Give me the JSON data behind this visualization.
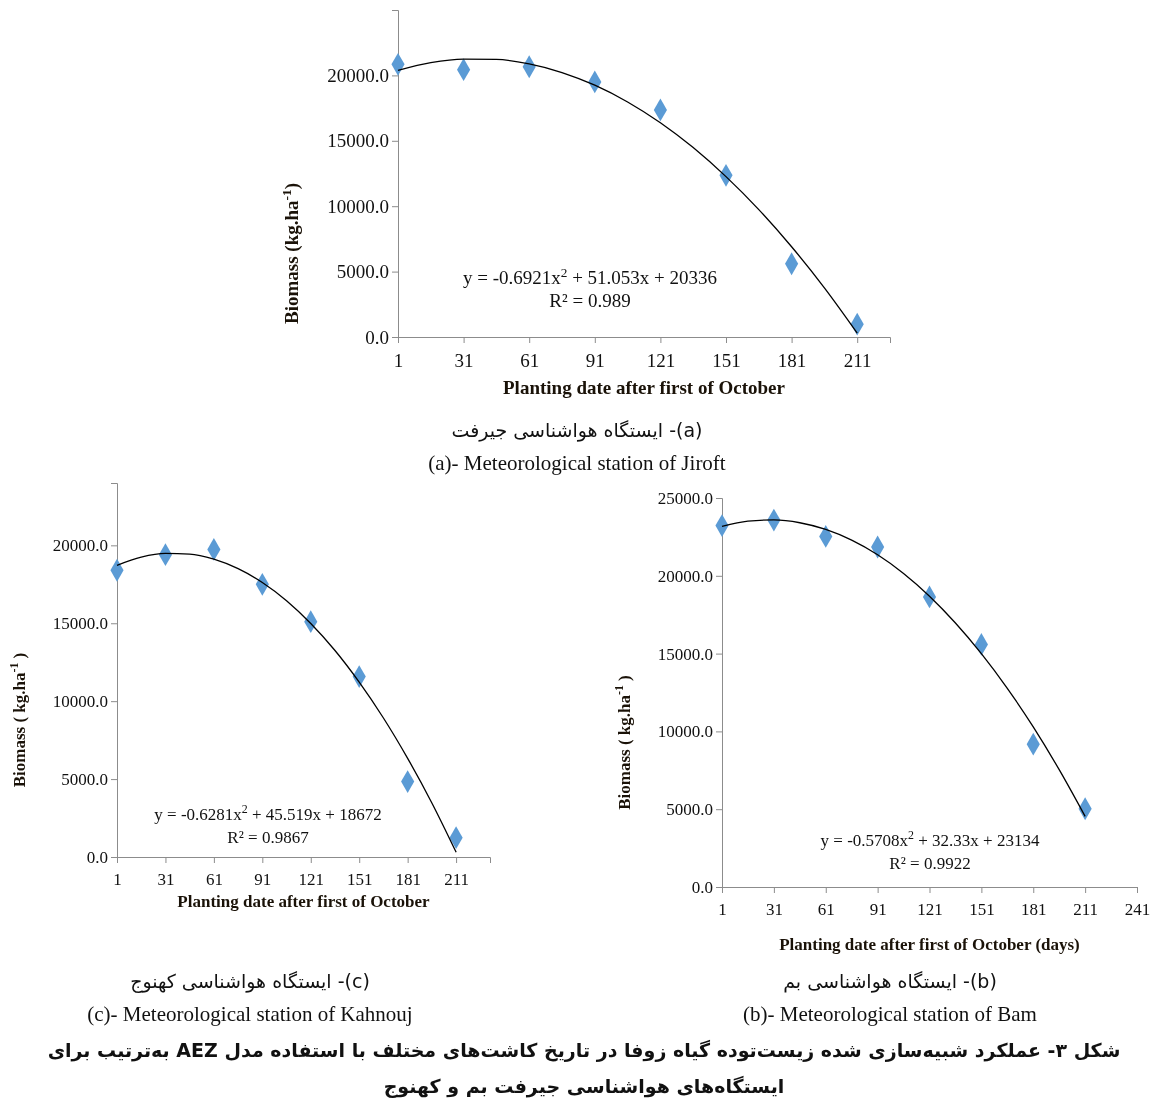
{
  "chart_data": [
    {
      "type": "scatter",
      "title": "(a)- ایستگاه هواشناسی جیرفت",
      "subtitle": "(a)- Meteorological station of Jiroft",
      "xlabel": "Planting date after first of October",
      "ylabel": "Biomass (kg.ha$^{-1}$)",
      "xlim": [
        1,
        226
      ],
      "xticks": [
        1,
        31,
        61,
        91,
        121,
        151,
        181,
        211
      ],
      "ylim": [
        0,
        25000
      ],
      "yticks": [
        {
          "value": 0,
          "label": "0.0"
        },
        {
          "value": 5000,
          "label": "5000.0"
        },
        {
          "value": 10000,
          "label": "10000.0"
        },
        {
          "value": 15000,
          "label": "15000.0"
        },
        {
          "value": 20000,
          "label": "20000.0"
        }
      ],
      "grid": false,
      "marker": "diamond",
      "annotations": [
        "y = -0.6921x$^{2}$ + 51.053x + 20336",
        "R² = 0.989"
      ],
      "series": [
        {
          "type": "scatter",
          "color": "#5b9bd5",
          "x": [
            1,
            31,
            61,
            91,
            121,
            151,
            181,
            211
          ],
          "values": [
            20850,
            20440,
            20660,
            19500,
            17360,
            12360,
            5600,
            980
          ]
        },
        {
          "type": "line",
          "color": "#000000",
          "marker": "none",
          "line_style": "solid",
          "x": [
            1,
            16,
            31,
            46,
            61,
            76,
            91,
            106,
            121,
            136,
            151,
            166,
            181,
            196,
            211
          ],
          "values": [
            20390,
            20980,
            21250,
            21220,
            20880,
            20220,
            19250,
            17970,
            16380,
            14480,
            12260,
            9740,
            6900,
            3760,
            300
          ]
        }
      ]
    },
    {
      "type": "scatter",
      "title": "(c)- ایستگاه هواشناسی کهنوج",
      "subtitle": "(c)- Meteorological station of Kahnouj",
      "xlabel": "Planting date after first of October",
      "ylabel": "Biomass ( kg.ha$^{-1}$ )",
      "xlim": [
        1,
        232
      ],
      "xticks": [
        1,
        31,
        61,
        91,
        121,
        151,
        181,
        211
      ],
      "ylim": [
        0,
        24000
      ],
      "yticks": [
        {
          "value": 0,
          "label": "0.0"
        },
        {
          "value": 5000,
          "label": "5000.0"
        },
        {
          "value": 10000,
          "label": "10000.0"
        },
        {
          "value": 15000,
          "label": "15000.0"
        },
        {
          "value": 20000,
          "label": "20000.0"
        }
      ],
      "grid": false,
      "marker": "diamond",
      "annotations": [
        "y = -0.6281x$^{2}$ + 45.519x + 18672",
        "R² = 0.9867"
      ],
      "series": [
        {
          "type": "scatter",
          "color": "#5b9bd5",
          "x": [
            1,
            31,
            61,
            91,
            121,
            151,
            181,
            211
          ],
          "values": [
            18400,
            19400,
            19740,
            17500,
            15100,
            11580,
            4840,
            1240
          ]
        },
        {
          "type": "line",
          "color": "#000000",
          "marker": "none",
          "line_style": "solid",
          "x": [
            1,
            16,
            31,
            46,
            61,
            76,
            91,
            106,
            121,
            136,
            151,
            166,
            181,
            196,
            211
          ],
          "values": [
            18720,
            19240,
            19480,
            19440,
            19110,
            18500,
            17610,
            16440,
            14980,
            13250,
            11220,
            8920,
            6330,
            3470,
            310
          ]
        }
      ]
    },
    {
      "type": "scatter",
      "title": "(b)- ایستگاه هواشناسی بم",
      "subtitle": "(b)- Meteorological station of Bam",
      "xlabel": "Planting date after first of October   (days)",
      "ylabel": "Biomass ( kg.ha$^{-1}$ )",
      "xlim": [
        1,
        241
      ],
      "xticks": [
        1,
        31,
        61,
        91,
        121,
        151,
        181,
        211,
        241
      ],
      "ylim": [
        0,
        25000
      ],
      "yticks": [
        {
          "value": 0,
          "label": "0.0"
        },
        {
          "value": 5000,
          "label": "5000.0"
        },
        {
          "value": 10000,
          "label": "10000.0"
        },
        {
          "value": 15000,
          "label": "15000.0"
        },
        {
          "value": 20000,
          "label": "20000.0"
        },
        {
          "value": 25000,
          "label": "25000.0"
        }
      ],
      "grid": false,
      "marker": "diamond",
      "annotations": [
        "y = -0.5708x$^{2}$ + 32.33x + 23134",
        "R² = 0.9922",
        "شکل ۳- عملکرد شبیه‌سازی شده زیست‌توده گیاه زوفا در تاریخ کاشت‌های مختلف با استفاده مدل AEZ به‌ترتیب برای ایستگاه‌های هواشناسی جیرفت بم و کهنوج"
      ],
      "series": [
        {
          "type": "scatter",
          "color": "#5b9bd5",
          "x": [
            1,
            31,
            61,
            91,
            121,
            151,
            181,
            211
          ],
          "values": [
            23230,
            23580,
            22530,
            21850,
            18640,
            15590,
            9180,
            5030
          ]
        },
        {
          "type": "line",
          "color": "#000000",
          "marker": "none",
          "line_style": "solid",
          "x": [
            1,
            16,
            31,
            46,
            61,
            76,
            91,
            106,
            121,
            136,
            151,
            166,
            181,
            196,
            211
          ],
          "values": [
            23170,
            23510,
            23590,
            23410,
            22980,
            22290,
            21350,
            20150,
            18690,
            16970,
            15000,
            12770,
            10290,
            7540,
            4540
          ]
        }
      ]
    }
  ]
}
